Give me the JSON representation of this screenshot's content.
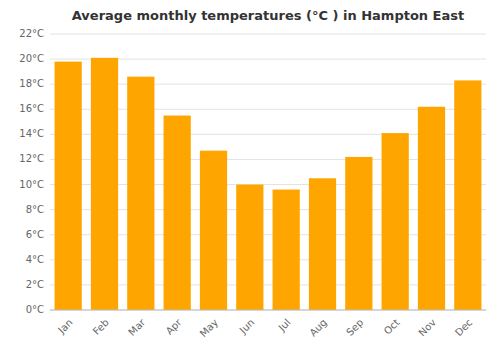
{
  "chart_data": {
    "type": "bar",
    "title": "Average monthly temperatures (°C ) in Hampton East",
    "categories": [
      "Jan",
      "Feb",
      "Mar",
      "Apr",
      "May",
      "Jun",
      "Jul",
      "Aug",
      "Sep",
      "Oct",
      "Nov",
      "Dec"
    ],
    "values": [
      19.8,
      20.1,
      18.6,
      15.5,
      12.7,
      10.0,
      9.6,
      10.5,
      12.2,
      14.1,
      16.2,
      18.3
    ],
    "color": "#FFA500",
    "ylim": [
      0,
      22
    ],
    "yticks": [
      {
        "value": 0,
        "label": "0°C"
      },
      {
        "value": 2,
        "label": "2°C"
      },
      {
        "value": 4,
        "label": "4°C"
      },
      {
        "value": 6,
        "label": "6°C"
      },
      {
        "value": 8,
        "label": "8°C"
      },
      {
        "value": 10,
        "label": "10°C"
      },
      {
        "value": 12,
        "label": "12°C"
      },
      {
        "value": 14,
        "label": "14°C"
      },
      {
        "value": 16,
        "label": "16°C"
      },
      {
        "value": 18,
        "label": "18°C"
      },
      {
        "value": 20,
        "label": "20°C"
      },
      {
        "value": 22,
        "label": "22°C"
      }
    ],
    "grid": true
  }
}
